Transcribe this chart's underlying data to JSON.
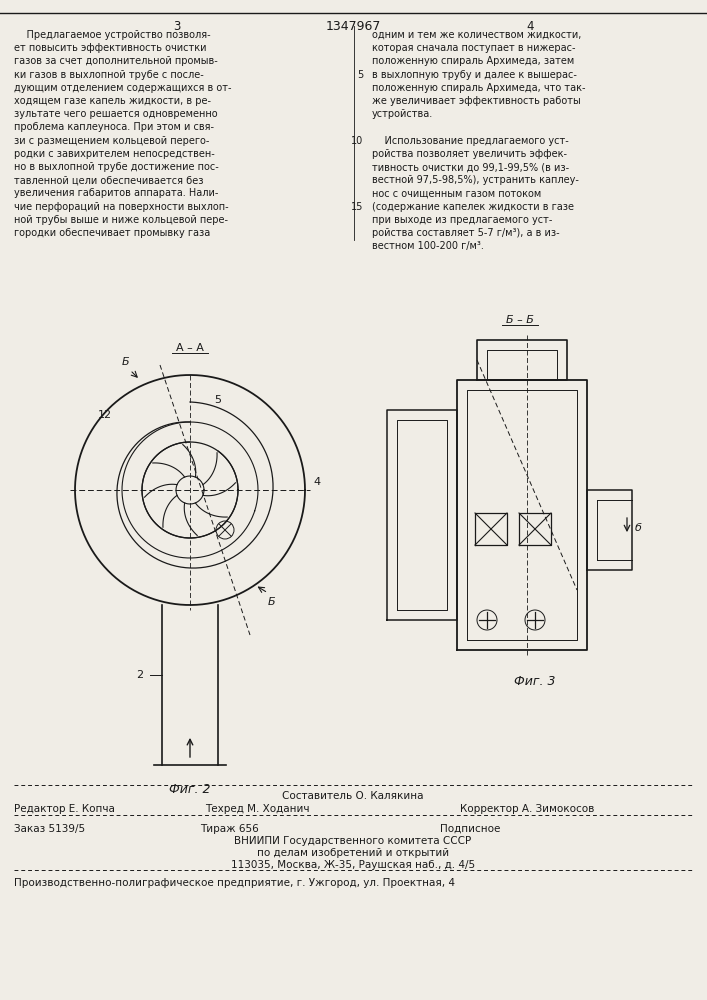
{
  "page_color": "#f0ede6",
  "text_color": "#1a1a1a",
  "title_center": "1347967",
  "page_left": "3",
  "page_right": "4",
  "left_text_lines": [
    "    Предлагаемое устройство позволя-",
    "ет повысить эффективность очистки",
    "газов за счет дополнительной промыв-",
    "ки газов в выхлопной трубе с после-",
    "дующим отделением содержащихся в от-",
    "ходящем газе капель жидкости, в ре-",
    "зультате чего решается одновременно",
    "проблема каплеуноса. При этом и свя-",
    "зи с размещением кольцевой перего-",
    "родки с завихрителем непосредствен-",
    "но в выхлопной трубе достижение пос-",
    "тавленной цели обеспечивается без",
    "увеличения габаритов аппарата. Нали-",
    "чие перфораций на поверхности выхлоп-",
    "ной трубы выше и ниже кольцевой пере-",
    "городки обеспечивает промывку газа"
  ],
  "right_text_lines": [
    "одним и тем же количеством жидкости,",
    "которая сначала поступает в нижерас-",
    "положенную спираль Архимеда, затем",
    "в выхлопную трубу и далее к вышерас-",
    "положенную спираль Архимеда, что так-",
    "же увеличивает эффективность работы",
    "устройства.",
    "",
    "    Использование предлагаемого уст-",
    "ройства позволяет увеличить эффек-",
    "тивность очистки до 99,1-99,5% (в из-",
    "вестной 97,5-98,5%), устранить каплеу-",
    "нос с очищенным газом потоком",
    "(содержание капелек жидкости в газе",
    "при выходе из предлагаемого уст-",
    "ройства составляет 5-7 г/м³), а в из-",
    "вестном 100-200 г/м³."
  ],
  "fig2_label": "Фиг. 2",
  "fig3_label": "Фиг. 3",
  "footer_comp": "Составитель О. Калякина",
  "footer_ed": "Редактор Е. Копча",
  "footer_tech": "Техред М. Ходанич",
  "footer_corr": "Корректор А. Зимокосов",
  "footer_order": "Заказ 5139/5",
  "footer_print": "Тираж 656",
  "footer_sign": "Подписное",
  "footer_org1": "ВНИИПИ Государственного комитета СССР",
  "footer_org2": "по делам изобретений и открытий",
  "footer_addr": "113035, Москва, Ж-35, Раушская наб., д. 4/5",
  "footer_prod": "Производственно-полиграфическое предприятие, г. Ужгород, ул. Проектная, 4"
}
